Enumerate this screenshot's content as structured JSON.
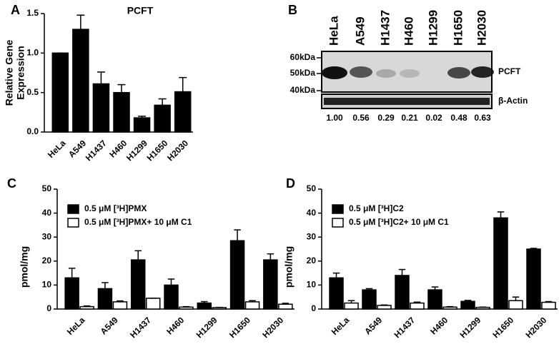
{
  "chart_data": [
    {
      "panel": "A",
      "type": "bar",
      "title": "PCFT",
      "ylabel": [
        "Relative Gene",
        "Expression"
      ],
      "categories": [
        "HeLa",
        "A549",
        "H1437",
        "H460",
        "H1299",
        "H1650",
        "H2030"
      ],
      "values": [
        1.0,
        1.3,
        0.61,
        0.5,
        0.18,
        0.34,
        0.51
      ],
      "errors": [
        0,
        0.18,
        0.15,
        0.1,
        0.02,
        0.08,
        0.18
      ],
      "color": "#000000",
      "ylim": [
        0,
        1.5
      ],
      "yticks": [
        {
          "value": 0,
          "label": "0.0"
        },
        0.5,
        {
          "value": 1,
          "label": "1.0"
        },
        1.5
      ]
    },
    {
      "panel": "C",
      "type": "bar",
      "ylabel": "pmol/mg",
      "categories": [
        "HeLa",
        "A549",
        "H1437",
        "H460",
        "H1299",
        "H1650",
        "H2030"
      ],
      "series": [
        {
          "name": "0.5 μM [³H]PMX",
          "color": "#000000",
          "values": [
            13,
            8.5,
            20.5,
            10,
            2.5,
            28.5,
            20.5
          ],
          "errors": [
            4,
            2.5,
            3.8,
            2.5,
            0.6,
            4.5,
            2.5
          ]
        },
        {
          "name": "0.5 μM [³H]PMX+ 10 μM C1",
          "color": "#ffffff",
          "values": [
            1,
            3,
            4.5,
            0.8,
            0.6,
            3,
            2
          ],
          "errors": [
            0.3,
            0.4,
            0,
            0.2,
            0.1,
            0.5,
            0.4
          ]
        }
      ],
      "ylim": [
        0,
        50
      ],
      "yticks": [
        0,
        10,
        20,
        30,
        40,
        50
      ]
    },
    {
      "panel": "D",
      "type": "bar",
      "ylabel": "pmol/mg",
      "categories": [
        "HeLa",
        "A549",
        "H1437",
        "H460",
        "H1299",
        "H1650",
        "H2030"
      ],
      "series": [
        {
          "name": "0.5 μM [³H]C2",
          "color": "#000000",
          "values": [
            13,
            8,
            14,
            8,
            3.2,
            38,
            25
          ],
          "errors": [
            2,
            0.5,
            2.5,
            1.2,
            0.4,
            2.5,
            0.3
          ]
        },
        {
          "name": "0.5 μM [³H]C2+ 10 μM C1",
          "color": "#ffffff",
          "values": [
            2.5,
            1.5,
            2.5,
            0.8,
            0.7,
            3.5,
            2.8
          ],
          "errors": [
            1,
            0.2,
            0.4,
            0.2,
            0.1,
            1.5,
            0.3
          ]
        }
      ],
      "ylim": [
        0,
        50
      ],
      "yticks": [
        0,
        10,
        20,
        30,
        40,
        50
      ]
    }
  ],
  "blot": {
    "panel": "B",
    "lanes": [
      "HeLa",
      "A549",
      "H1437",
      "H460",
      "H1299",
      "H1650",
      "H2030"
    ],
    "markers": [
      "60kDa",
      "50kDa",
      "40kDa"
    ],
    "bands": [
      "PCFT",
      "β-Actin"
    ],
    "quantification": [
      "1.00",
      "0.56",
      "0.29",
      "0.21",
      "0.02",
      "0.48",
      "0.63"
    ]
  }
}
